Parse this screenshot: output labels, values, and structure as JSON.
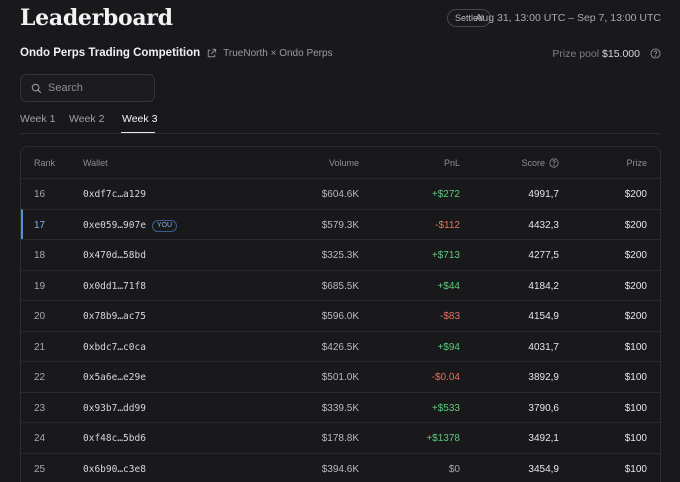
{
  "header": {
    "title": "Leaderboard",
    "status": "Settled",
    "date_range": "Aug 31, 13:00 UTC – Sep 7, 13:00 UTC"
  },
  "competition": {
    "name": "Ondo Perps Trading Competition",
    "subtitle": "TrueNorth × Ondo Perps",
    "prize_pool_label": "Prize pool",
    "prize_pool_value": "$15.000"
  },
  "search": {
    "placeholder": "Search"
  },
  "tabs": [
    {
      "label": "Week 1",
      "active": false
    },
    {
      "label": "Week 2",
      "active": false
    },
    {
      "label": "Week 3",
      "active": true
    }
  ],
  "table": {
    "headers": {
      "rank": "Rank",
      "wallet": "Wallet",
      "volume": "Volume",
      "pnl": "PnL",
      "score": "Score",
      "prize": "Prize"
    },
    "you_badge": "YOU",
    "rows": [
      {
        "rank": "16",
        "wallet": "0xdf7c…a129",
        "volume": "$604.6K",
        "pnl": "+$272",
        "score": "4991,7",
        "prize": "$200",
        "you": false
      },
      {
        "rank": "17",
        "wallet": "0xe059…907e",
        "volume": "$579.3K",
        "pnl": "-$112",
        "score": "4432,3",
        "prize": "$200",
        "you": true
      },
      {
        "rank": "18",
        "wallet": "0x470d…58bd",
        "volume": "$325.3K",
        "pnl": "+$713",
        "score": "4277,5",
        "prize": "$200",
        "you": false
      },
      {
        "rank": "19",
        "wallet": "0x0dd1…71f8",
        "volume": "$685.5K",
        "pnl": "+$44",
        "score": "4184,2",
        "prize": "$200",
        "you": false
      },
      {
        "rank": "20",
        "wallet": "0x78b9…ac75",
        "volume": "$596.0K",
        "pnl": "-$83",
        "score": "4154,9",
        "prize": "$200",
        "you": false
      },
      {
        "rank": "21",
        "wallet": "0xbdc7…c0ca",
        "volume": "$426.5K",
        "pnl": "+$94",
        "score": "4031,7",
        "prize": "$100",
        "you": false
      },
      {
        "rank": "22",
        "wallet": "0x5a6e…e29e",
        "volume": "$501.0K",
        "pnl": "-$0.04",
        "score": "3892,9",
        "prize": "$100",
        "you": false
      },
      {
        "rank": "23",
        "wallet": "0x93b7…dd99",
        "volume": "$339.5K",
        "pnl": "+$533",
        "score": "3790,6",
        "prize": "$100",
        "you": false
      },
      {
        "rank": "24",
        "wallet": "0xf48c…5bd6",
        "volume": "$178.8K",
        "pnl": "+$1378",
        "score": "3492,1",
        "prize": "$100",
        "you": false
      },
      {
        "rank": "25",
        "wallet": "0x6b90…c3e8",
        "volume": "$394.6K",
        "pnl": "$0",
        "score": "3454,9",
        "prize": "$100",
        "you": false
      }
    ]
  },
  "icons": {
    "external_link": "external-link-icon",
    "help": "help-circle-icon",
    "search": "search-icon"
  },
  "colors": {
    "positive": "#5fc97a",
    "negative": "#e2735f",
    "accent": "#7fb0f0"
  }
}
